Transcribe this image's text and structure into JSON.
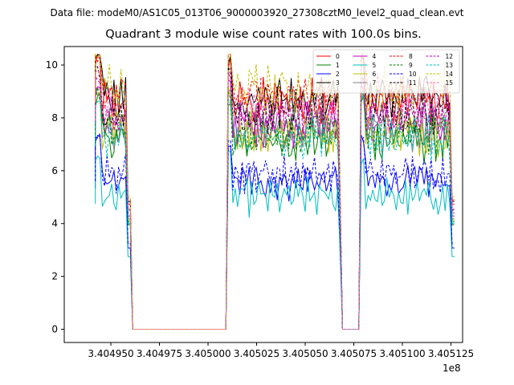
{
  "suptitle": "Data file: modeM0/AS1C05_013T06_9000003920_27308cztM0_level2_quad_clean.evt",
  "chart_data": {
    "type": "line",
    "title": "Quadrant 3 module wise count rates with 100.0s bins.",
    "xlabel": "",
    "ylabel": "",
    "x_offset_label": "1e8",
    "x_ticks": [
      3.40495,
      3.404975,
      3.405,
      3.405025,
      3.40505,
      3.405075,
      3.4051,
      3.405125
    ],
    "x_tick_labels": [
      "3.404950",
      "3.404975",
      "3.405000",
      "3.405025",
      "3.405050",
      "3.405075",
      "3.405100",
      "3.405125"
    ],
    "y_ticks": [
      0,
      2,
      4,
      6,
      8,
      10
    ],
    "y_tick_labels": [
      "0",
      "2",
      "4",
      "6",
      "8",
      "10"
    ],
    "xlim": [
      3.404926,
      3.405131
    ],
    "ylim": [
      -0.5,
      10.7
    ],
    "grid": false,
    "legend_position": "top-right",
    "segments": [
      {
        "start": 3.404942,
        "end": 3.40496
      },
      {
        "start": 3.40501,
        "end": 3.405069
      },
      {
        "start": 3.405078,
        "end": 3.405127
      }
    ],
    "gaps": [
      {
        "start": 3.404945,
        "end": 3.404948
      },
      {
        "start": 3.405007,
        "end": 3.405012
      },
      {
        "start": 3.405068,
        "end": 3.405078
      }
    ],
    "series": [
      {
        "name": "0",
        "color": "#ff0000",
        "dash": "solid",
        "level": 8.6
      },
      {
        "name": "1",
        "color": "#008000",
        "dash": "solid",
        "level": 7.2
      },
      {
        "name": "2",
        "color": "#0000ff",
        "dash": "solid",
        "level": 5.6
      },
      {
        "name": "3",
        "color": "#000000",
        "dash": "solid",
        "level": 8.8
      },
      {
        "name": "4",
        "color": "#bf00bf",
        "dash": "solid",
        "level": 7.8
      },
      {
        "name": "5",
        "color": "#00bfbf",
        "dash": "solid",
        "level": 5.0
      },
      {
        "name": "6",
        "color": "#bfbf00",
        "dash": "solid",
        "level": 7.5
      },
      {
        "name": "7",
        "color": "#808080",
        "dash": "solid",
        "level": 7.6
      },
      {
        "name": "8",
        "color": "#ff0000",
        "dash": "dashed",
        "level": 8.9
      },
      {
        "name": "9",
        "color": "#008000",
        "dash": "dashed",
        "level": 7.4
      },
      {
        "name": "10",
        "color": "#0000ff",
        "dash": "dashed",
        "level": 5.9
      },
      {
        "name": "11",
        "color": "#000000",
        "dash": "dashed",
        "level": 8.2
      },
      {
        "name": "12",
        "color": "#bf00bf",
        "dash": "dashed",
        "level": 8.0
      },
      {
        "name": "13",
        "color": "#00bfbf",
        "dash": "dashed",
        "level": 7.3
      },
      {
        "name": "14",
        "color": "#bfbf00",
        "dash": "dashed",
        "level": 9.1
      },
      {
        "name": "15",
        "color": "#ff69b4",
        "dash": "dashed",
        "level": 8.3
      }
    ]
  }
}
